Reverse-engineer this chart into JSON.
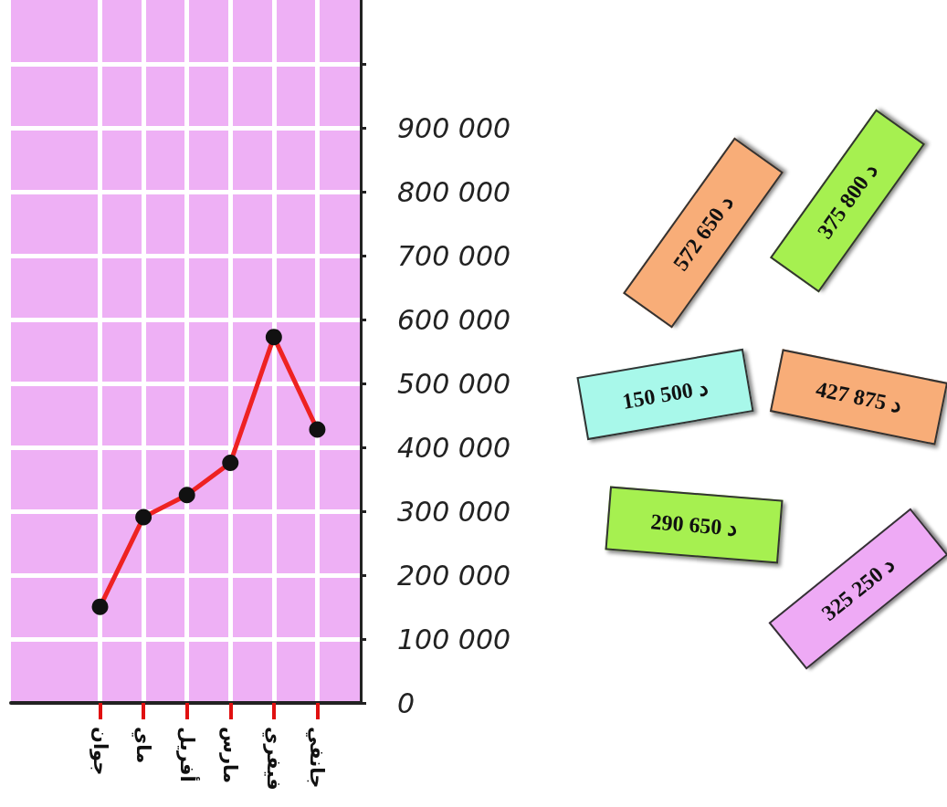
{
  "chart_data": {
    "type": "line",
    "categories": [
      "جوان",
      "ماي",
      "أفريل",
      "مارس",
      "فيفري",
      "جانفي"
    ],
    "series": [
      {
        "color": "#ee2222",
        "values": [
          150500,
          290650,
          325250,
          375800,
          572650,
          427875
        ]
      }
    ],
    "ylim": [
      0,
      1100000
    ],
    "yticks": [
      0,
      {
        "value": 100000,
        "label": "100 000"
      },
      {
        "value": 200000,
        "label": "200 000"
      },
      {
        "value": 300000,
        "label": "300 000"
      },
      {
        "value": 400000,
        "label": "400 000"
      },
      {
        "value": 500000,
        "label": "500 000"
      },
      {
        "value": 600000,
        "label": "600 000"
      },
      {
        "value": 700000,
        "label": "700 000"
      },
      {
        "value": 800000,
        "label": "800 000"
      },
      {
        "value": 900000,
        "label": "900 000"
      },
      {
        "value": 1000000,
        "label": null
      }
    ],
    "grid": true,
    "marker": "circle",
    "line_style": "solid",
    "annotations": [
      "375 800 د",
      "572 650 د",
      "150 500 د",
      "427 875 د",
      "290 650 د",
      "325 250 د"
    ]
  }
}
